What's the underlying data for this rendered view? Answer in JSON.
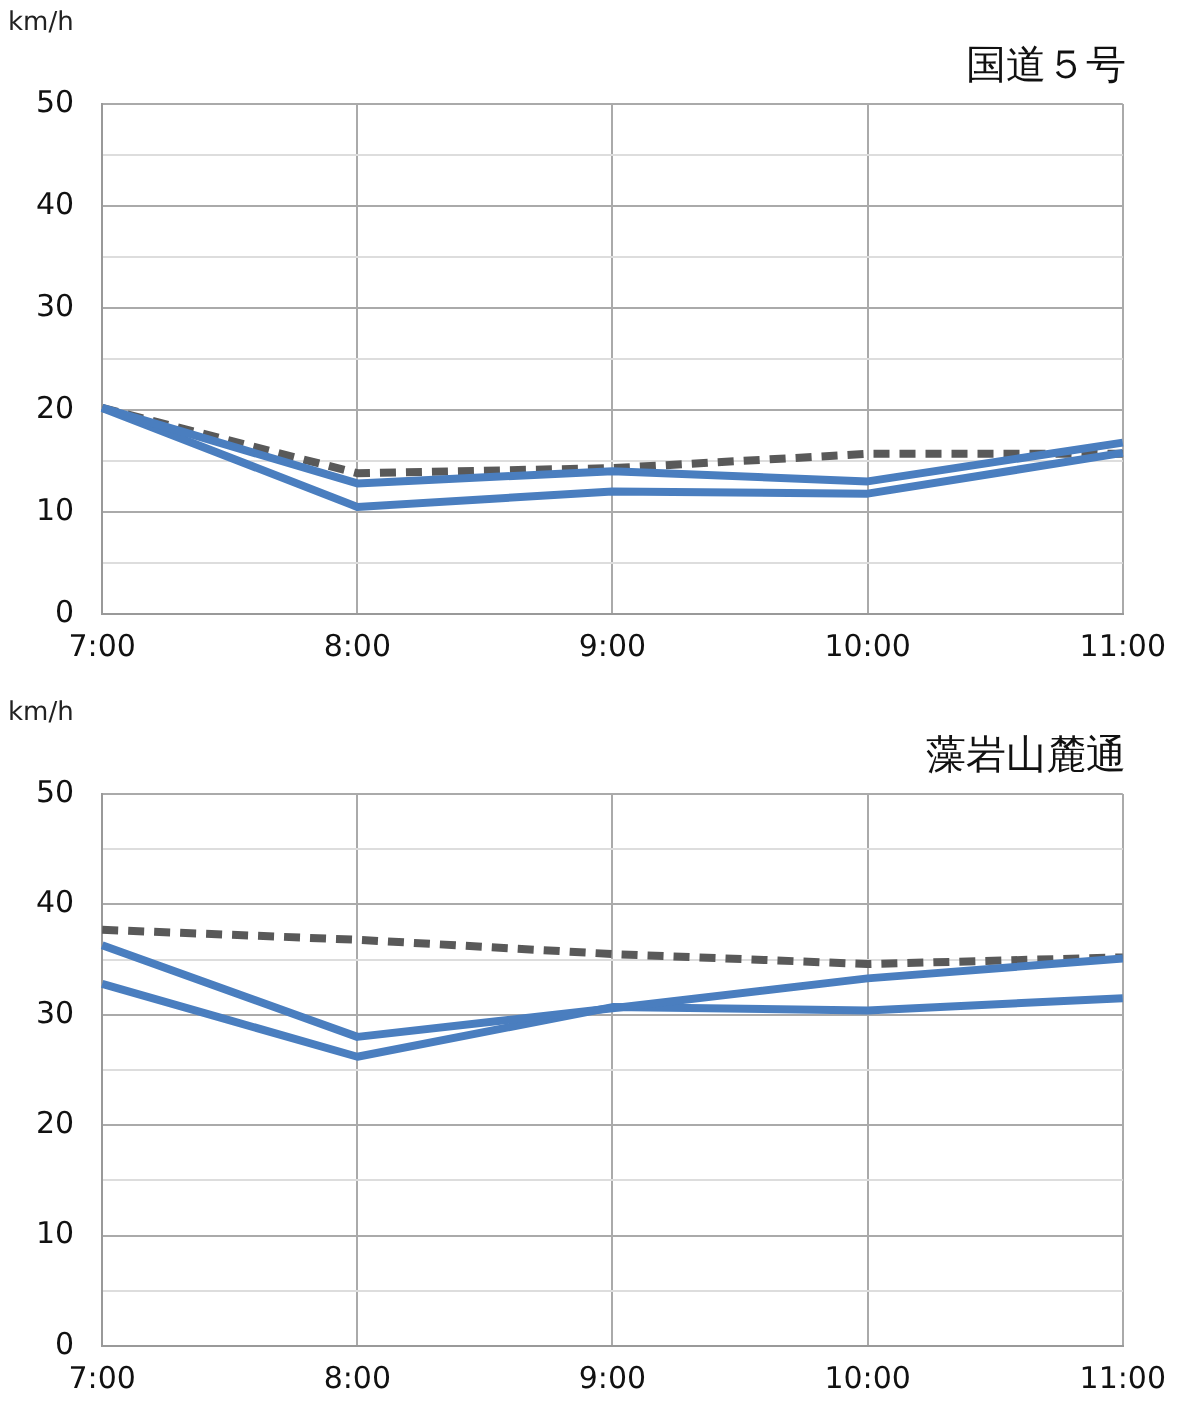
{
  "chart_data": [
    {
      "type": "line",
      "title": "国道５号",
      "ylabel": "km/h",
      "categories": [
        "7:00",
        "8:00",
        "9:00",
        "10:00",
        "11:00"
      ],
      "ylim": [
        0,
        50
      ],
      "yticks": [
        0,
        {
          "value": 5,
          "label": null
        },
        10,
        {
          "value": 15,
          "label": null
        },
        20,
        {
          "value": 25,
          "label": null
        },
        30,
        {
          "value": 35,
          "label": null
        },
        40,
        {
          "value": 45,
          "label": null
        },
        50
      ],
      "grid": true,
      "legend": false,
      "marker": "none",
      "series": [
        {
          "color": "#4a7ebf",
          "line_style": "solid",
          "values": [
            20.2,
            12.8,
            14,
            13,
            16.8
          ]
        },
        {
          "color": "#4a7ebf",
          "line_style": "solid",
          "values": [
            20.2,
            10.5,
            12,
            11.8,
            15.8
          ]
        },
        {
          "color": "#595959",
          "line_style": "dashed",
          "values": [
            20.2,
            13.8,
            14.3,
            15.7,
            15.7
          ]
        }
      ]
    },
    {
      "type": "line",
      "title": "藻岩山麓通",
      "ylabel": "km/h",
      "categories": [
        "7:00",
        "8:00",
        "9:00",
        "10:00",
        "11:00"
      ],
      "ylim": [
        0,
        50
      ],
      "yticks": [
        0,
        {
          "value": 5,
          "label": null
        },
        10,
        {
          "value": 15,
          "label": null
        },
        20,
        {
          "value": 25,
          "label": null
        },
        30,
        {
          "value": 35,
          "label": null
        },
        40,
        {
          "value": 45,
          "label": null
        },
        50
      ],
      "grid": true,
      "legend": false,
      "marker": "none",
      "series": [
        {
          "color": "#4a7ebf",
          "line_style": "solid",
          "values": [
            36.3,
            28,
            30.6,
            33.3,
            35.1
          ]
        },
        {
          "color": "#4a7ebf",
          "line_style": "solid",
          "values": [
            32.8,
            26.2,
            30.7,
            30.4,
            31.5
          ]
        },
        {
          "color": "#595959",
          "line_style": "dashed",
          "values": [
            37.7,
            36.8,
            35.5,
            34.6,
            35.2
          ]
        }
      ]
    }
  ]
}
